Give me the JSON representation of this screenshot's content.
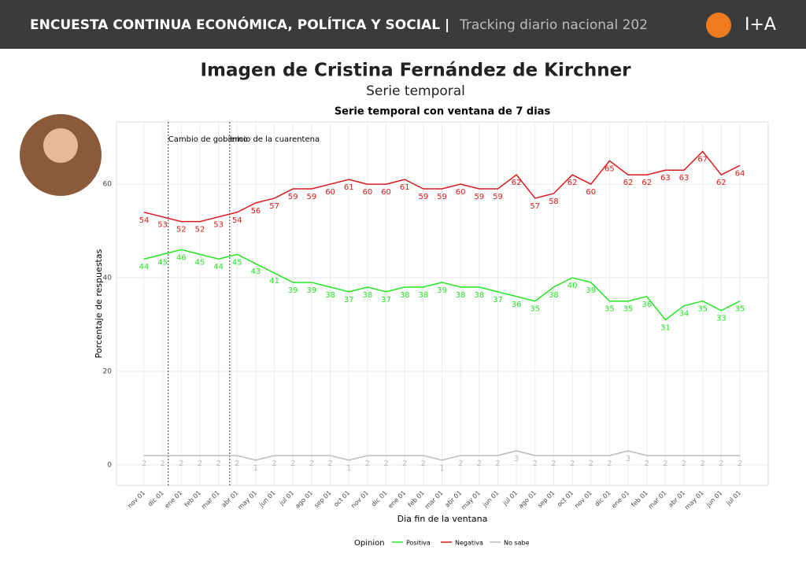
{
  "header": {
    "title": "ENCUESTA CONTINUA ECONÓMICA, POLÍTICA Y SOCIAL |",
    "subtitle": "Tracking diario nacional 202",
    "logo": "I+A"
  },
  "chart_data": {
    "type": "line",
    "title": "Imagen de Cristina Fernández de Kirchner",
    "subtitle": "Serie temporal",
    "plot_title": "Serie temporal con ventana de 7 dias",
    "x_label": "Dia fin de la ventana",
    "y_label": "Porcentaje de respuestas",
    "legend_title": "Opinion",
    "categories": [
      "nov 01",
      "dic 01",
      "ene 01",
      "feb 01",
      "mar 01",
      "abr 01",
      "may 01",
      "jun 01",
      "jul 01",
      "ago 01",
      "sep 01",
      "oct 01",
      "nov 01",
      "dic 01",
      "ene 01",
      "feb 01",
      "mar 01",
      "abr 01",
      "may 01",
      "jun 01",
      "jul 01",
      "ago 01",
      "sep 01",
      "oct 01",
      "nov 01",
      "dic 01",
      "ene 01",
      "feb 01",
      "mar 01",
      "abr 01",
      "may 01",
      "jun 01",
      "jul 01"
    ],
    "series": [
      {
        "name": "Positiva",
        "color": "#22e622",
        "values": [
          44,
          45,
          46,
          45,
          44,
          45,
          43,
          41,
          39,
          39,
          38,
          37,
          38,
          37,
          38,
          38,
          39,
          38,
          38,
          37,
          36,
          35,
          38,
          40,
          39,
          35,
          35,
          36,
          31,
          34,
          35,
          33,
          35
        ]
      },
      {
        "name": "Negativa",
        "color": "#d91a1a",
        "values": [
          54,
          53,
          52,
          52,
          53,
          54,
          56,
          57,
          59,
          59,
          60,
          61,
          60,
          60,
          61,
          59,
          59,
          60,
          59,
          59,
          62,
          57,
          58,
          62,
          60,
          65,
          62,
          62,
          63,
          63,
          67,
          62,
          64
        ]
      },
      {
        "name": "No sabe",
        "color": "#bbbbbb",
        "values": [
          2,
          2,
          2,
          2,
          2,
          2,
          1,
          2,
          2,
          2,
          2,
          1,
          2,
          2,
          2,
          2,
          1,
          2,
          2,
          2,
          3,
          2,
          2,
          2,
          2,
          2,
          3,
          2,
          2,
          2,
          2,
          2,
          2
        ]
      }
    ],
    "annotations": [
      {
        "x": 1.3,
        "text": "Cambio de gobierno"
      },
      {
        "x": 4.6,
        "text": "Inicio de la cuarentena"
      }
    ],
    "ylim": [
      -4.4,
      73.3
    ],
    "yticks": [
      0,
      20,
      40,
      60
    ],
    "grid": true,
    "legend": "bottom"
  }
}
